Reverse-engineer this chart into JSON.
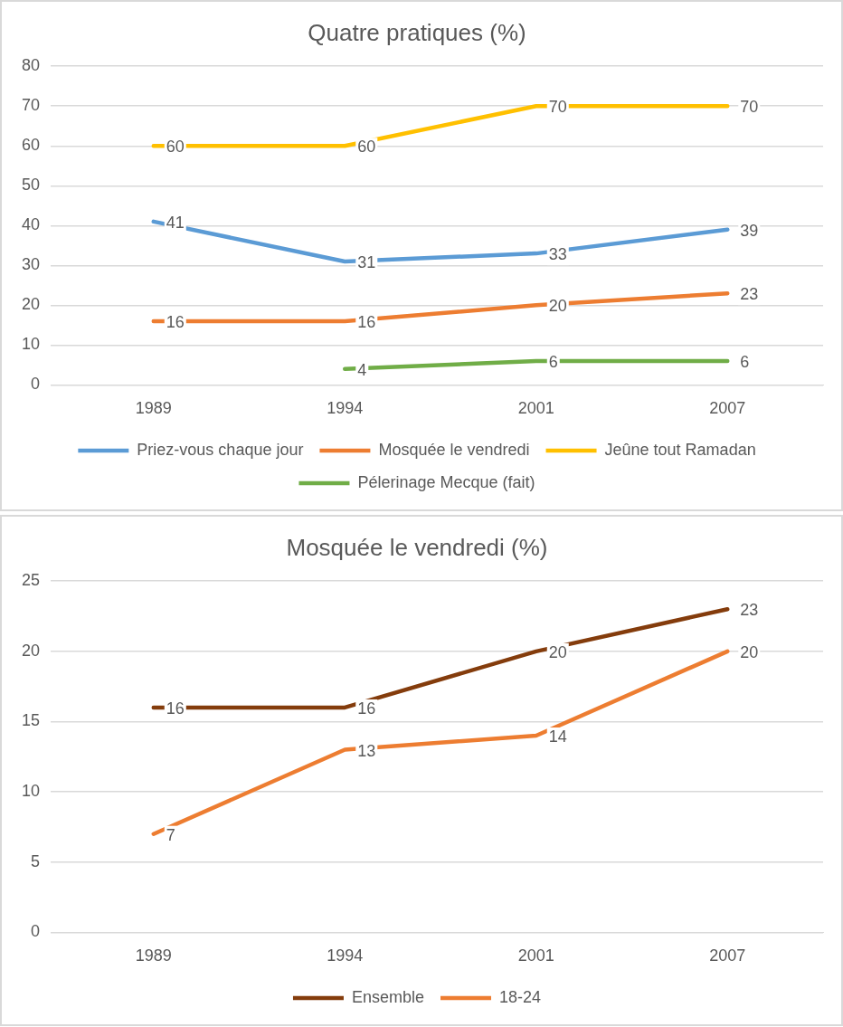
{
  "chart_data": [
    {
      "type": "line",
      "title": "Quatre pratiques (%)",
      "categories": [
        "1989",
        "1994",
        "2001",
        "2007"
      ],
      "series": [
        {
          "name": "Priez-vous chaque jour",
          "color": "#5b9bd5",
          "values": [
            41,
            31,
            33,
            39
          ]
        },
        {
          "name": "Mosquée le vendredi",
          "color": "#ed7d31",
          "values": [
            16,
            16,
            20,
            23
          ]
        },
        {
          "name": "Jeûne tout Ramadan",
          "color": "#ffc000",
          "values": [
            60,
            60,
            70,
            70
          ]
        },
        {
          "name": "Pélerinage Mecque (fait)",
          "color": "#70ad47",
          "values": [
            null,
            4,
            6,
            6
          ]
        }
      ],
      "ylim": [
        0,
        80
      ],
      "yticks": [
        0,
        10,
        20,
        30,
        40,
        50,
        60,
        70,
        80
      ],
      "grid": "y",
      "legend": "bottom",
      "data_labels": true,
      "marker": "none",
      "line_style": "solid"
    },
    {
      "type": "line",
      "title": "Mosquée le vendredi (%)",
      "categories": [
        "1989",
        "1994",
        "2001",
        "2007"
      ],
      "series": [
        {
          "name": "Ensemble",
          "color": "#843c0c",
          "values": [
            16,
            16,
            20,
            23
          ]
        },
        {
          "name": "18-24",
          "color": "#ed7d31",
          "values": [
            7,
            13,
            14,
            20
          ]
        }
      ],
      "ylim": [
        0,
        25
      ],
      "yticks": [
        0,
        5,
        10,
        15,
        20,
        25
      ],
      "grid": "y",
      "legend": "bottom",
      "data_labels": true,
      "marker": "none",
      "line_style": "solid"
    }
  ]
}
